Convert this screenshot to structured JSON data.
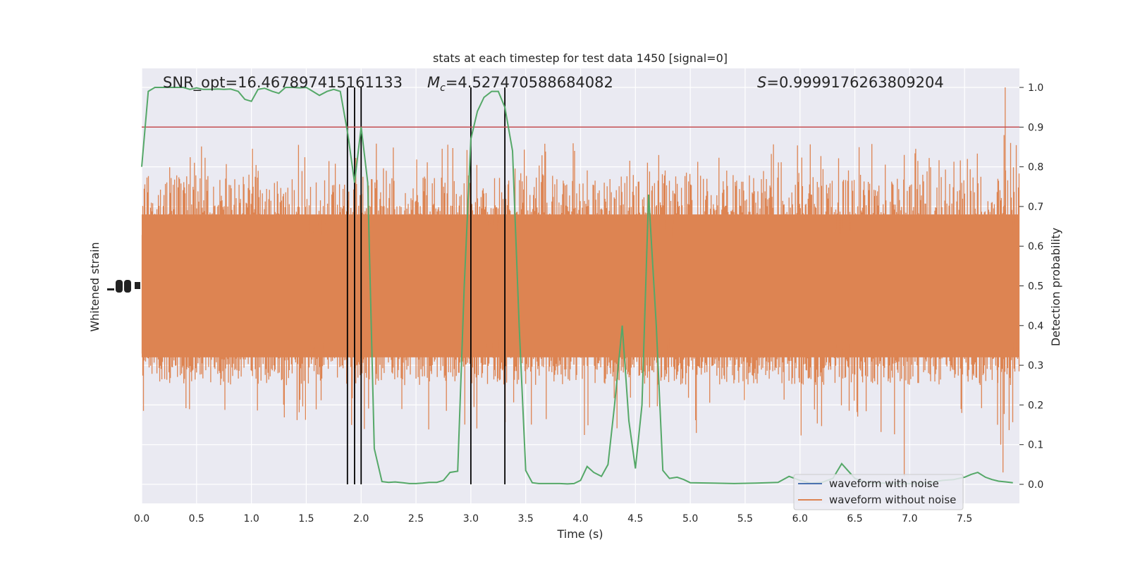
{
  "chart_data": {
    "type": "line",
    "title": "stats at each timestep for test data 1450 [signal=0]",
    "xlabel": "Time (s)",
    "ylabel_left": "Whitened strain",
    "ylabel_right": "Detection probability",
    "xlim": [
      0.0,
      8.0
    ],
    "ylim_right": [
      0.0,
      1.0
    ],
    "x_ticks": [
      "0.0",
      "0.5",
      "1.0",
      "1.5",
      "2.0",
      "2.5",
      "3.0",
      "3.5",
      "4.0",
      "4.5",
      "5.0",
      "5.5",
      "6.0",
      "6.5",
      "7.0",
      "7.5"
    ],
    "y_right_ticks": [
      "0.0",
      "0.1",
      "0.2",
      "0.3",
      "0.4",
      "0.5",
      "0.6",
      "0.7",
      "0.8",
      "0.9",
      "1.0"
    ],
    "annotations": {
      "snr": "SNR_opt=16.467897415161133",
      "mc_symbol": "M",
      "mc_sub": "c",
      "mc_value": "=4.527470588684082",
      "s_symbol": "S",
      "s_value": "=0.9999176263809204"
    },
    "threshold": 0.9,
    "vertical_markers": [
      1.875,
      1.94,
      2.0,
      3.0,
      3.31
    ],
    "legend": {
      "location": "lower right",
      "entries": [
        {
          "label": "waveform with noise",
          "color": "#4c72b0"
        },
        {
          "label": "waveform without noise",
          "color": "#dd8452"
        }
      ]
    },
    "probability_series": {
      "color": "#55a868",
      "x": [
        0.0,
        0.06,
        0.12,
        0.19,
        0.25,
        0.31,
        0.38,
        0.44,
        0.5,
        0.56,
        0.62,
        0.69,
        0.75,
        0.81,
        0.88,
        0.94,
        1.0,
        1.06,
        1.12,
        1.19,
        1.25,
        1.31,
        1.38,
        1.44,
        1.5,
        1.56,
        1.62,
        1.69,
        1.75,
        1.81,
        1.88,
        1.94,
        2.0,
        2.06,
        2.12,
        2.19,
        2.25,
        2.31,
        2.38,
        2.44,
        2.5,
        2.56,
        2.62,
        2.69,
        2.75,
        2.81,
        2.88,
        2.94,
        3.0,
        3.06,
        3.12,
        3.19,
        3.25,
        3.31,
        3.38,
        3.44,
        3.5,
        3.56,
        3.62,
        3.69,
        3.75,
        3.81,
        3.88,
        3.94,
        4.0,
        4.06,
        4.12,
        4.19,
        4.25,
        4.31,
        4.38,
        4.44,
        4.5,
        4.56,
        4.62,
        4.69,
        4.75,
        4.81,
        4.88,
        4.94,
        5.0,
        5.2,
        5.4,
        5.6,
        5.8,
        5.9,
        6.0,
        6.1,
        6.2,
        6.3,
        6.38,
        6.5,
        6.6,
        6.7,
        6.8,
        6.9,
        7.0,
        7.1,
        7.2,
        7.3,
        7.4,
        7.5,
        7.56,
        7.62,
        7.69,
        7.75,
        7.81,
        7.88,
        7.94
      ],
      "values": [
        0.8,
        0.99,
        1.0,
        1.0,
        1.0,
        1.0,
        1.0,
        0.995,
        0.999,
        0.995,
        0.995,
        0.996,
        0.995,
        0.996,
        0.99,
        0.97,
        0.965,
        0.995,
        0.998,
        0.99,
        0.985,
        1.0,
        1.0,
        0.999,
        1.0,
        0.99,
        0.98,
        0.99,
        0.995,
        0.99,
        0.88,
        0.76,
        0.9,
        0.76,
        0.09,
        0.007,
        0.005,
        0.006,
        0.004,
        0.002,
        0.002,
        0.003,
        0.005,
        0.005,
        0.01,
        0.03,
        0.033,
        0.5,
        0.87,
        0.94,
        0.975,
        0.99,
        0.99,
        0.95,
        0.84,
        0.4,
        0.035,
        0.004,
        0.002,
        0.002,
        0.002,
        0.002,
        0.001,
        0.002,
        0.01,
        0.045,
        0.03,
        0.02,
        0.05,
        0.2,
        0.4,
        0.16,
        0.04,
        0.2,
        0.73,
        0.4,
        0.035,
        0.015,
        0.018,
        0.012,
        0.004,
        0.003,
        0.002,
        0.003,
        0.005,
        0.02,
        0.01,
        0.003,
        0.005,
        0.015,
        0.052,
        0.015,
        0.005,
        0.003,
        0.003,
        0.002,
        0.002,
        0.003,
        0.005,
        0.01,
        0.012,
        0.018,
        0.025,
        0.03,
        0.018,
        0.012,
        0.008,
        0.006,
        0.004
      ]
    },
    "strain_without_noise": {
      "color": "#dd8452",
      "core_band": [
        0.32,
        0.68
      ],
      "typical_extremes": [
        0.25,
        0.78
      ],
      "max_peak": 1.0,
      "min_trough": 0.02
    }
  }
}
